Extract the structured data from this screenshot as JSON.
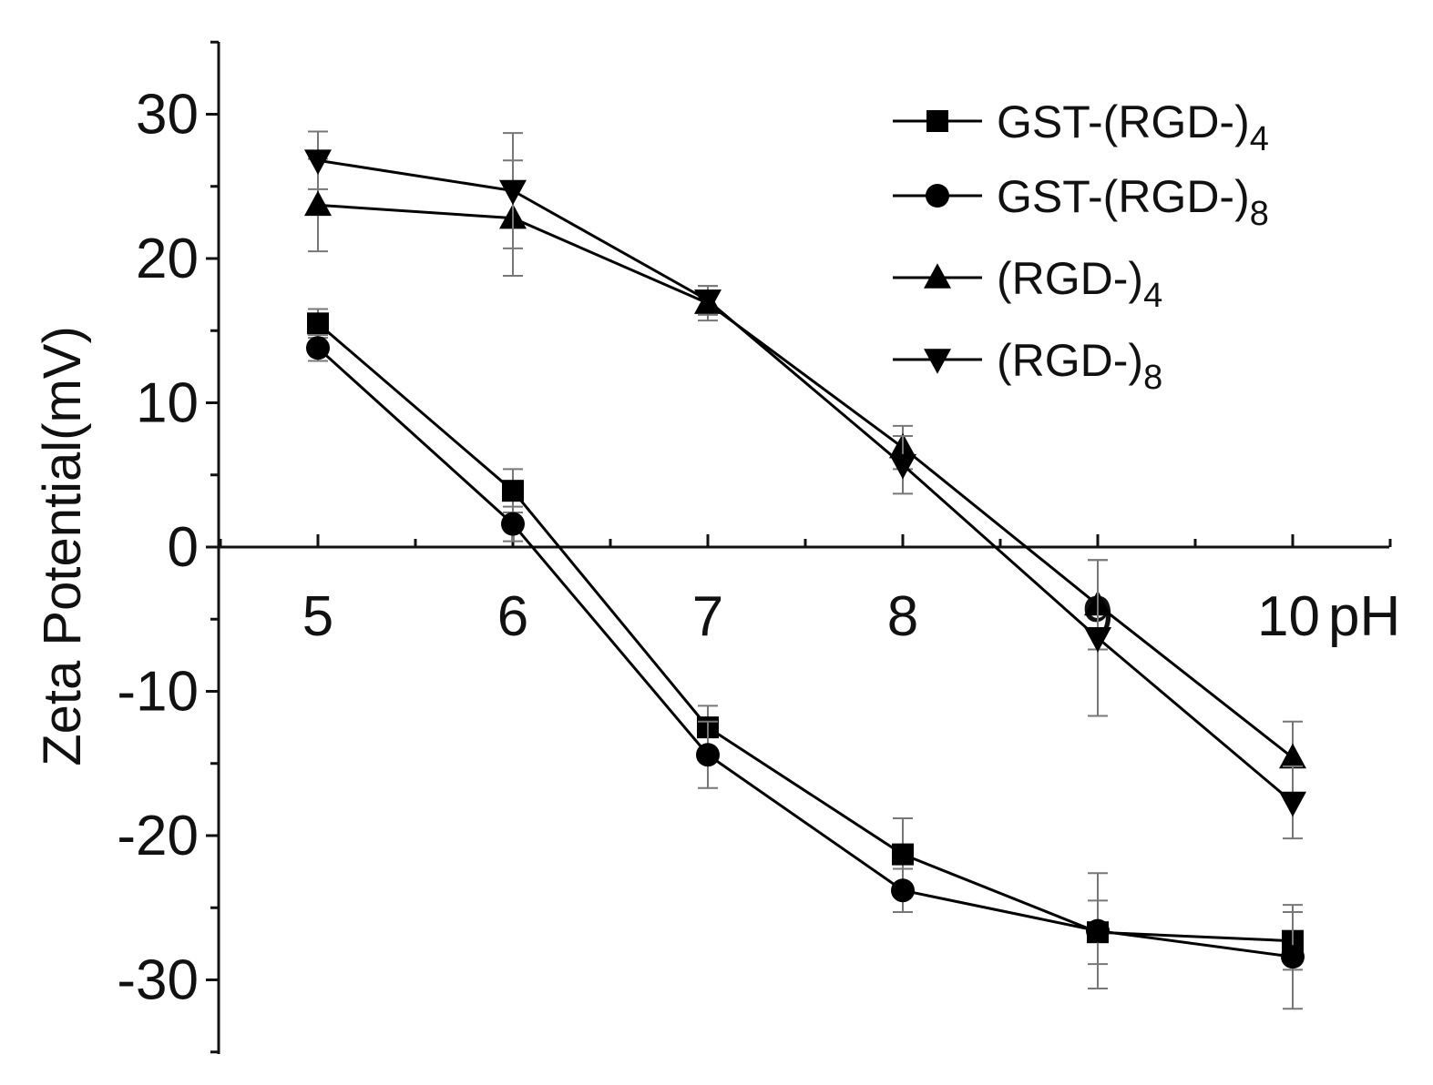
{
  "chart_data": {
    "type": "line",
    "title": "",
    "xlabel": "pH",
    "ylabel": "Zeta Potential(mV)",
    "x": [
      5,
      6,
      7,
      8,
      9,
      10
    ],
    "xlim": [
      4.35,
      10.5
    ],
    "ylim": [
      -35,
      35
    ],
    "x_ticks": [
      5,
      6,
      7,
      8,
      9,
      10
    ],
    "x_tick_labels": [
      "5",
      "6",
      "7",
      "8",
      "9",
      "10"
    ],
    "y_ticks": [
      -30,
      -20,
      -10,
      0,
      10,
      20,
      30
    ],
    "y_tick_labels": [
      "-30",
      "-20",
      "-10",
      "0",
      "10",
      "20",
      "30"
    ],
    "grid": false,
    "legend_position": "top-right",
    "series": [
      {
        "name": "GST-(RGD-)4",
        "label_main": "GST-(RGD-)",
        "label_sub": "4",
        "marker": "square",
        "values": [
          15.5,
          3.9,
          -12.5,
          -21.3,
          -26.7,
          -27.3
        ],
        "errors": [
          1.0,
          1.5,
          1.5,
          2.5,
          2.2,
          2.0
        ]
      },
      {
        "name": "GST-(RGD-)8",
        "label_main": "GST-(RGD-)",
        "label_sub": "8",
        "marker": "circle",
        "values": [
          13.8,
          1.6,
          -14.4,
          -23.8,
          -26.6,
          -28.4
        ],
        "errors": [
          0.9,
          1.2,
          2.3,
          1.5,
          4.0,
          3.6
        ]
      },
      {
        "name": "(RGD-)4",
        "label_main": "(RGD-)",
        "label_sub": "4",
        "marker": "triangle-up",
        "values": [
          23.7,
          22.8,
          16.9,
          6.9,
          -4.0,
          -14.6
        ],
        "errors": [
          3.2,
          4.0,
          1.2,
          1.5,
          3.1,
          2.5
        ]
      },
      {
        "name": "(RGD-)8",
        "label_main": "(RGD-)",
        "label_sub": "8",
        "marker": "triangle-down",
        "values": [
          26.8,
          24.7,
          17.1,
          5.7,
          -6.3,
          -17.7
        ],
        "errors": [
          2.0,
          4.0,
          1.0,
          2.0,
          5.4,
          2.5
        ]
      }
    ]
  }
}
